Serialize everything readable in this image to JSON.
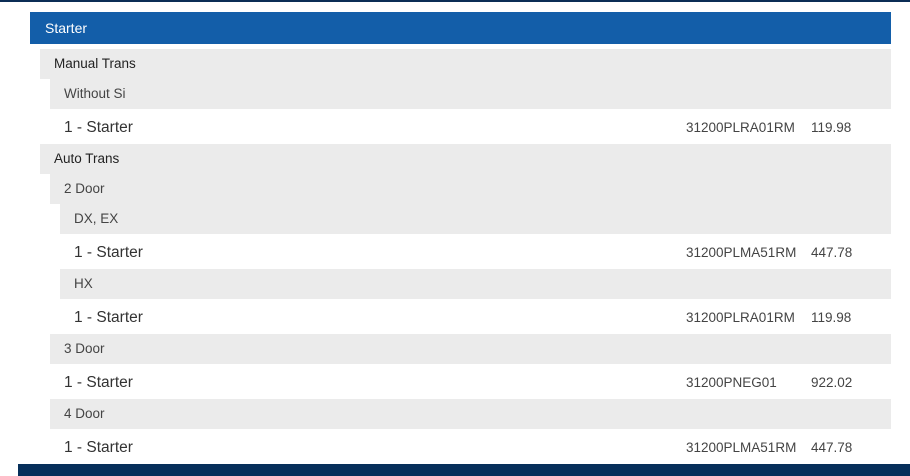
{
  "header": {
    "title": "Starter"
  },
  "rows": [
    {
      "type": "group",
      "level": 1,
      "label": "Manual Trans"
    },
    {
      "type": "group",
      "level": 2,
      "label": "Without Si"
    },
    {
      "type": "part",
      "level": 2,
      "label": "1 - Starter",
      "part_number": "31200PLRA01RM",
      "price": "119.98"
    },
    {
      "type": "group",
      "level": 1,
      "label": "Auto Trans"
    },
    {
      "type": "group",
      "level": 2,
      "label": "2 Door"
    },
    {
      "type": "group",
      "level": 3,
      "label": "DX, EX"
    },
    {
      "type": "part",
      "level": 3,
      "label": "1 - Starter",
      "part_number": "31200PLMA51RM",
      "price": "447.78"
    },
    {
      "type": "group",
      "level": 3,
      "label": "HX"
    },
    {
      "type": "part",
      "level": 3,
      "label": "1 - Starter",
      "part_number": "31200PLRA01RM",
      "price": "119.98"
    },
    {
      "type": "group",
      "level": 2,
      "label": "3 Door"
    },
    {
      "type": "part",
      "level": 2,
      "label": "1 - Starter",
      "part_number": "31200PNEG01",
      "price": "922.02"
    },
    {
      "type": "group",
      "level": 2,
      "label": "4 Door"
    },
    {
      "type": "part",
      "level": 2,
      "label": "1 - Starter",
      "part_number": "31200PLMA51RM",
      "price": "447.78"
    }
  ],
  "colors": {
    "header": "#135ea9",
    "nav": "#062f5a",
    "group_bg": "#ebebeb"
  }
}
